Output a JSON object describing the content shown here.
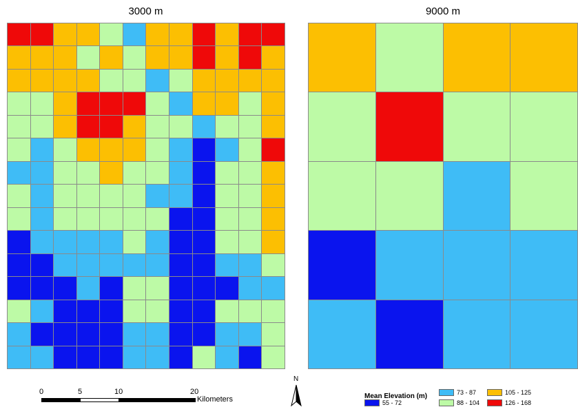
{
  "colors": {
    "dark_blue": "#0a14ee",
    "light_blue": "#3fbcf6",
    "green": "#bdfaa6",
    "orange": "#fcbf02",
    "red": "#ef0909"
  },
  "panels": {
    "left": {
      "title": "3000 m",
      "rows": 15,
      "cols": 12,
      "cells": [
        [
          "red",
          "red",
          "orange",
          "orange",
          "green",
          "light_blue",
          "orange",
          "orange",
          "red",
          "orange",
          "red",
          "red"
        ],
        [
          "orange",
          "orange",
          "orange",
          "green",
          "orange",
          "green",
          "orange",
          "orange",
          "red",
          "orange",
          "red",
          "orange"
        ],
        [
          "orange",
          "orange",
          "orange",
          "orange",
          "green",
          "green",
          "light_blue",
          "green",
          "orange",
          "orange",
          "orange",
          "orange"
        ],
        [
          "green",
          "green",
          "orange",
          "red",
          "red",
          "red",
          "green",
          "light_blue",
          "orange",
          "orange",
          "green",
          "orange"
        ],
        [
          "green",
          "green",
          "orange",
          "red",
          "red",
          "orange",
          "green",
          "green",
          "light_blue",
          "green",
          "green",
          "orange"
        ],
        [
          "green",
          "light_blue",
          "green",
          "orange",
          "orange",
          "orange",
          "green",
          "light_blue",
          "dark_blue",
          "light_blue",
          "green",
          "red"
        ],
        [
          "light_blue",
          "light_blue",
          "green",
          "green",
          "orange",
          "green",
          "green",
          "light_blue",
          "dark_blue",
          "green",
          "green",
          "orange"
        ],
        [
          "green",
          "light_blue",
          "green",
          "green",
          "green",
          "green",
          "light_blue",
          "light_blue",
          "dark_blue",
          "green",
          "green",
          "orange"
        ],
        [
          "green",
          "light_blue",
          "green",
          "green",
          "green",
          "green",
          "green",
          "dark_blue",
          "dark_blue",
          "green",
          "green",
          "orange"
        ],
        [
          "dark_blue",
          "light_blue",
          "light_blue",
          "light_blue",
          "light_blue",
          "green",
          "light_blue",
          "dark_blue",
          "dark_blue",
          "green",
          "green",
          "orange"
        ],
        [
          "dark_blue",
          "dark_blue",
          "light_blue",
          "light_blue",
          "light_blue",
          "light_blue",
          "light_blue",
          "dark_blue",
          "dark_blue",
          "light_blue",
          "light_blue",
          "green"
        ],
        [
          "dark_blue",
          "dark_blue",
          "dark_blue",
          "light_blue",
          "dark_blue",
          "green",
          "green",
          "dark_blue",
          "dark_blue",
          "dark_blue",
          "light_blue",
          "light_blue"
        ],
        [
          "green",
          "light_blue",
          "dark_blue",
          "dark_blue",
          "dark_blue",
          "green",
          "green",
          "dark_blue",
          "dark_blue",
          "green",
          "green",
          "green"
        ],
        [
          "light_blue",
          "dark_blue",
          "dark_blue",
          "dark_blue",
          "dark_blue",
          "light_blue",
          "light_blue",
          "dark_blue",
          "dark_blue",
          "light_blue",
          "light_blue",
          "green"
        ],
        [
          "light_blue",
          "light_blue",
          "dark_blue",
          "dark_blue",
          "dark_blue",
          "light_blue",
          "light_blue",
          "dark_blue",
          "green",
          "light_blue",
          "dark_blue",
          "green"
        ]
      ]
    },
    "right": {
      "title": "9000 m",
      "rows": 5,
      "cols": 4,
      "cells": [
        [
          "orange",
          "green",
          "orange",
          "orange"
        ],
        [
          "green",
          "red",
          "green",
          "green"
        ],
        [
          "green",
          "green",
          "light_blue",
          "green"
        ],
        [
          "dark_blue",
          "light_blue",
          "light_blue",
          "light_blue"
        ],
        [
          "light_blue",
          "dark_blue",
          "light_blue",
          "light_blue"
        ]
      ]
    }
  },
  "scale_bar": {
    "labels": [
      "0",
      "5",
      "10",
      "20"
    ],
    "unit": "Kilometers"
  },
  "north_arrow": {
    "label": "N",
    "icon": "north-arrow-icon"
  },
  "legend": {
    "title": "Mean Elevation (m)",
    "items": [
      {
        "label": "73 - 87",
        "color_key": "light_blue"
      },
      {
        "label": "105 - 125",
        "color_key": "orange"
      },
      {
        "label": "55 - 72",
        "color_key": "dark_blue"
      },
      {
        "label": "88 - 104",
        "color_key": "green"
      },
      {
        "label": "126 - 168",
        "color_key": "red"
      }
    ]
  }
}
